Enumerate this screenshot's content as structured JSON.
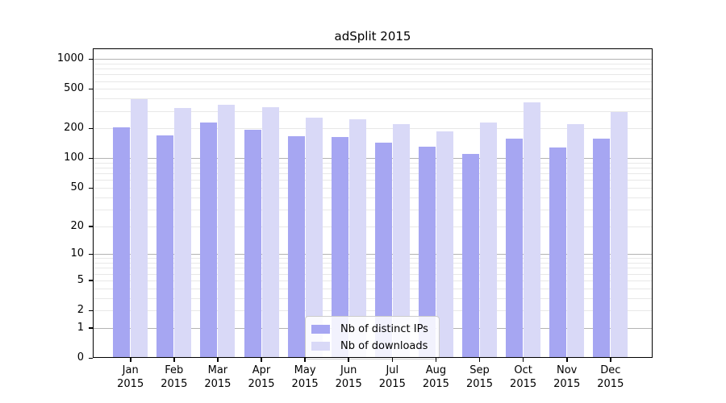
{
  "figure": {
    "title": "adSplit 2015"
  },
  "chart_data": {
    "type": "bar",
    "title": "adSplit 2015",
    "categories": [
      "Jan",
      "Feb",
      "Mar",
      "Apr",
      "May",
      "Jun",
      "Jul",
      "Aug",
      "Sep",
      "Oct",
      "Nov",
      "Dec"
    ],
    "year_label": "2015",
    "series": [
      {
        "name": "Nb of distinct IPs",
        "color": "#a6a6f2",
        "values": [
          206,
          170,
          231,
          194,
          168,
          163,
          145,
          132,
          110,
          159,
          128,
          159
        ]
      },
      {
        "name": "Nb of downloads",
        "color": "#d9d9f7",
        "values": [
          393,
          320,
          346,
          329,
          258,
          249,
          220,
          186,
          229,
          368,
          222,
          291
        ]
      }
    ],
    "yscale": "log1p",
    "ylim": [
      0,
      1280
    ],
    "xlabel": "",
    "ylabel": "",
    "y_ticks": [
      {
        "value": 1000,
        "label": "1000"
      },
      {
        "value": 500,
        "label": "500"
      },
      {
        "value": 200,
        "label": "200"
      },
      {
        "value": 100,
        "label": "100"
      },
      {
        "value": 50,
        "label": "50"
      },
      {
        "value": 20,
        "label": "20"
      },
      {
        "value": 10,
        "label": "10"
      },
      {
        "value": 5,
        "label": "5"
      },
      {
        "value": 2,
        "label": "2"
      },
      {
        "value": 1,
        "label": "1"
      },
      {
        "value": 0,
        "label": "0"
      }
    ],
    "major_gridlines": [
      1,
      10,
      100,
      1000
    ],
    "minor_gridlines": [
      2,
      3,
      4,
      5,
      6,
      7,
      8,
      9,
      20,
      30,
      40,
      50,
      60,
      70,
      80,
      90,
      200,
      300,
      400,
      500,
      600,
      700,
      800,
      900
    ],
    "grid": true,
    "legend_position": "lower center"
  },
  "colors": {
    "major_grid": "#b3b3b3",
    "minor_grid": "#e8e8e8",
    "axis": "#000000",
    "background": "#ffffff",
    "legend_border": "#cccccc"
  }
}
